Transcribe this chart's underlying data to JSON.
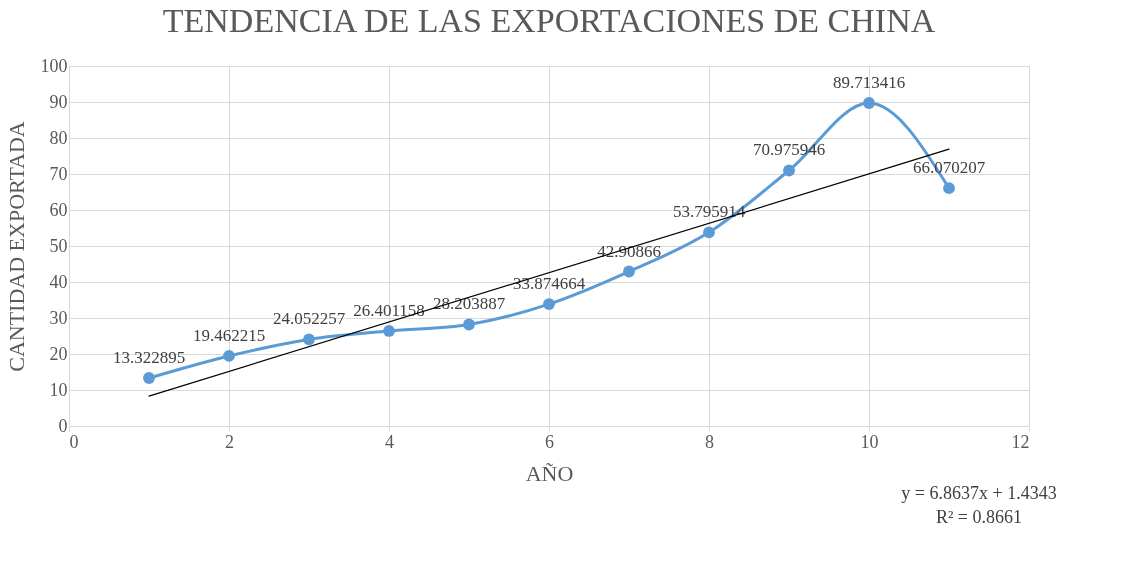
{
  "chart_data": {
    "type": "line",
    "title": "TENDENCIA DE LAS EXPORTACIONES DE CHINA",
    "xlabel": "AÑO",
    "ylabel": "CANTIDAD EXPORTADA",
    "x": [
      1,
      2,
      3,
      4,
      5,
      6,
      7,
      8,
      9,
      10,
      11
    ],
    "series": [
      {
        "color": "#5b9bd5",
        "marker": "circle",
        "values": [
          13.322895,
          19.462215,
          24.052257,
          26.401158,
          28.203887,
          33.874664,
          42.90866,
          53.795914,
          70.975946,
          89.713416,
          66.070207
        ],
        "value_labels": [
          "13.322895",
          "19.462215",
          "24.052257",
          "26.401158",
          "28.203887",
          "33.874664",
          "42.90866",
          "53.795914",
          "70.975946",
          "89.713416",
          "66.070207"
        ]
      },
      {
        "type": "line",
        "color": "#000000",
        "marker": "none",
        "x": [
          1,
          11
        ],
        "values": [
          8.3,
          76.9
        ]
      }
    ],
    "xlim": [
      0,
      12
    ],
    "xticks": [
      0,
      2,
      4,
      6,
      8,
      10,
      12
    ],
    "ylim": [
      0,
      100
    ],
    "yticks": [
      0,
      10,
      20,
      30,
      40,
      50,
      60,
      70,
      80,
      90,
      100
    ],
    "grid": true,
    "annotations": [
      "y = 6.8637x + 1.4343",
      "R² = 0.8661"
    ]
  }
}
